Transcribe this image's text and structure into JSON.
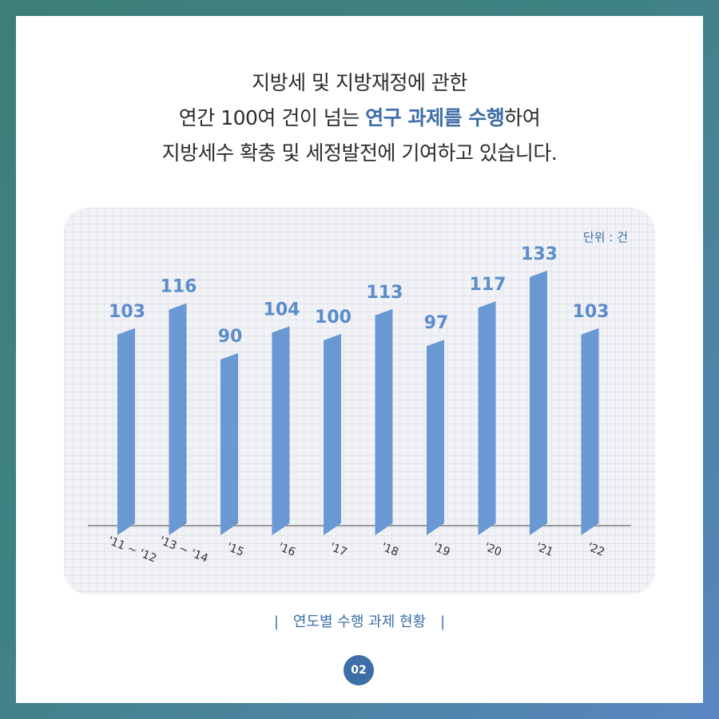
{
  "headline": {
    "line1": "지방세 및 지방재정에 관한",
    "line2_pre": "연간 100여 건이 넘는 ",
    "line2_highlight": "연구 과제를 수행",
    "line2_post": "하여",
    "line3": "지방세수 확충 및 세정발전에 기여하고 있습니다."
  },
  "unit_label": "단위 : 건",
  "caption": {
    "left_bar": "|",
    "text": "연도별 수행 과제 현황",
    "right_bar": "|"
  },
  "page_number": "02",
  "colors": {
    "bar": "#6a98d2",
    "bar_side": "#5582c0",
    "label": "#5b8ccc",
    "accent": "#3d6ea8"
  },
  "chart_data": {
    "type": "bar",
    "categories": [
      "'11 ~ '12",
      "'13 ~ '14",
      "'15",
      "'16",
      "'17",
      "'18",
      "'19",
      "'20",
      "'21",
      "'22"
    ],
    "values": [
      103,
      116,
      90,
      104,
      100,
      113,
      97,
      117,
      133,
      103
    ],
    "title": "",
    "xlabel": "",
    "ylabel": "",
    "grid": true,
    "data_labels": true
  }
}
